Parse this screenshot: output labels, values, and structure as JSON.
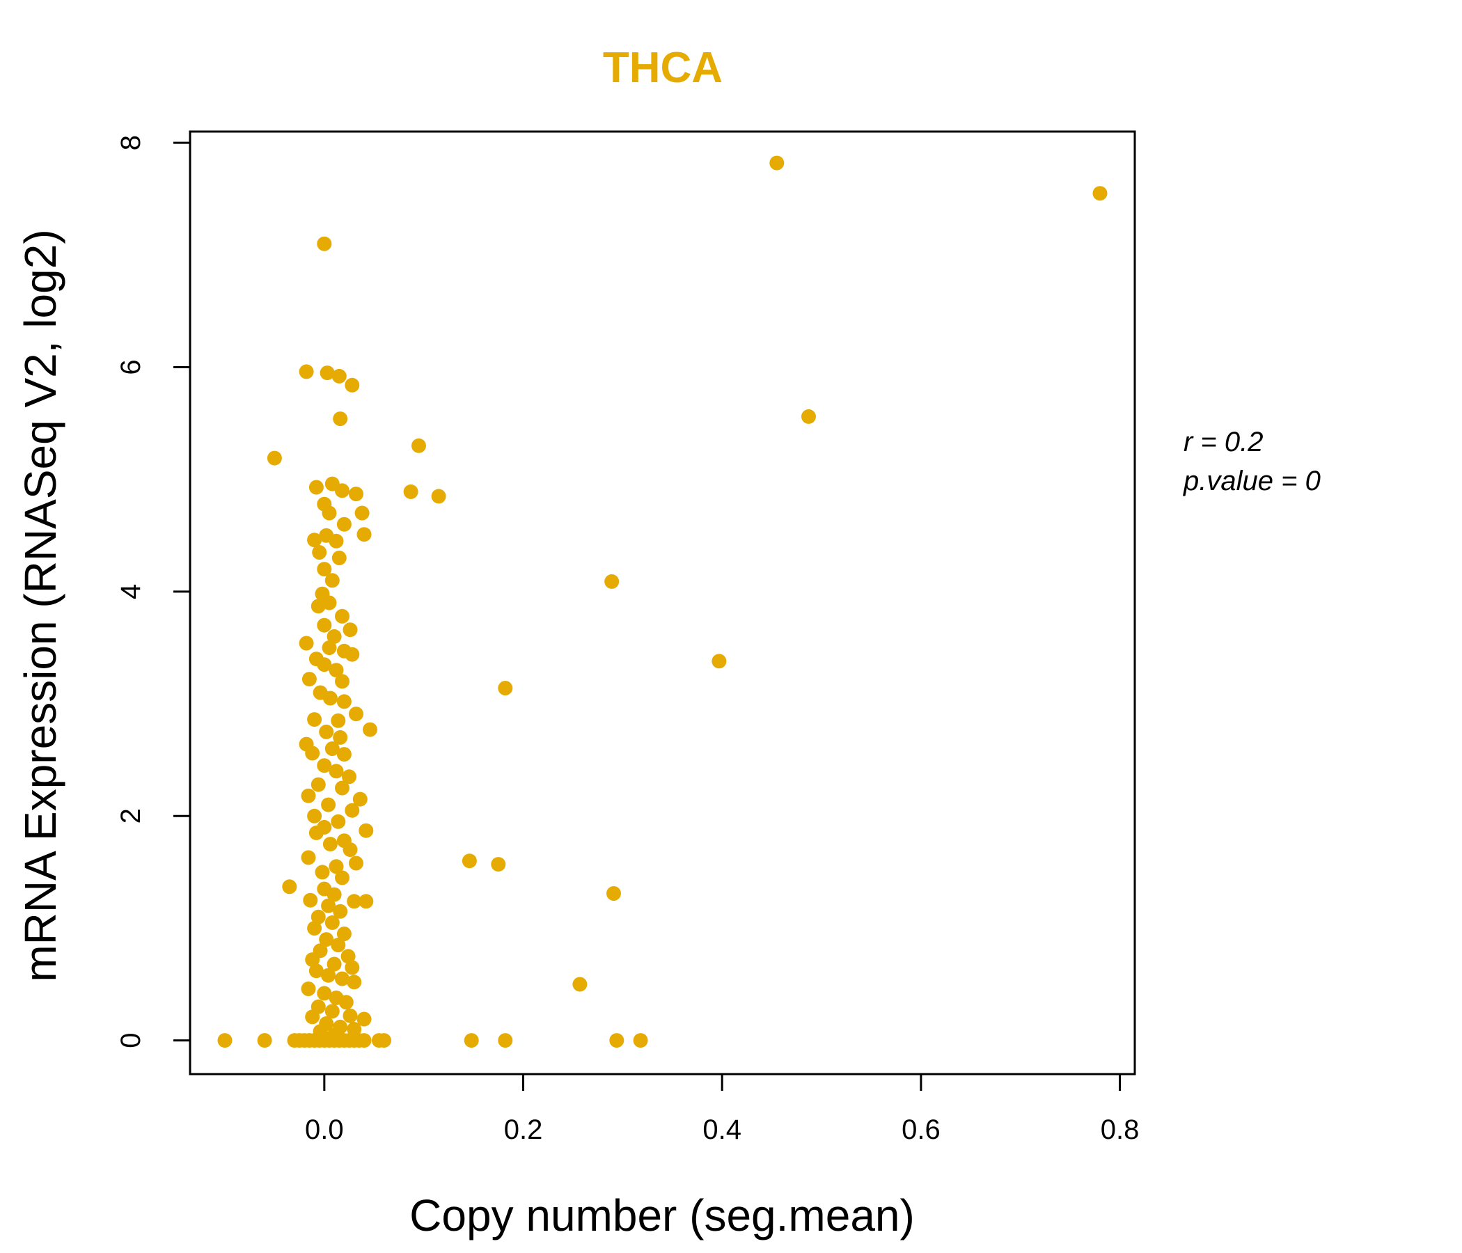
{
  "chart_data": {
    "type": "scatter",
    "title": "THCA",
    "xlabel": "Copy number (seg.mean)",
    "ylabel": "mRNA Expression (RNASeq V2, log2)",
    "xlim": [
      -0.135,
      0.815
    ],
    "ylim": [
      -0.3,
      8.1
    ],
    "x_ticks": [
      0.0,
      0.2,
      0.4,
      0.6,
      0.8
    ],
    "x_tick_labels": [
      "0.0",
      "0.2",
      "0.4",
      "0.6",
      "0.8"
    ],
    "y_ticks": [
      0,
      2,
      4,
      6,
      8
    ],
    "y_tick_labels": [
      "0",
      "2",
      "4",
      "6",
      "8"
    ],
    "grid": false,
    "point_color": "#E6AB02",
    "annotations": {
      "r_text": "r = 0.2",
      "p_text": "p.value = 0"
    },
    "points": [
      {
        "x": -0.1,
        "y": 0.0
      },
      {
        "x": -0.06,
        "y": 0.0
      },
      {
        "x": -0.03,
        "y": 0.0
      },
      {
        "x": -0.025,
        "y": 0.0
      },
      {
        "x": -0.02,
        "y": 0.0
      },
      {
        "x": -0.015,
        "y": 0.0
      },
      {
        "x": -0.01,
        "y": 0.0
      },
      {
        "x": -0.005,
        "y": 0.0
      },
      {
        "x": 0.0,
        "y": 0.0
      },
      {
        "x": 0.005,
        "y": 0.0
      },
      {
        "x": 0.01,
        "y": 0.0
      },
      {
        "x": 0.015,
        "y": 0.0
      },
      {
        "x": 0.02,
        "y": 0.0
      },
      {
        "x": 0.025,
        "y": 0.0
      },
      {
        "x": 0.03,
        "y": 0.0
      },
      {
        "x": 0.035,
        "y": 0.0
      },
      {
        "x": 0.04,
        "y": 0.0
      },
      {
        "x": 0.055,
        "y": 0.0
      },
      {
        "x": 0.06,
        "y": 0.0
      },
      {
        "x": 0.148,
        "y": 0.0
      },
      {
        "x": 0.182,
        "y": 0.0
      },
      {
        "x": 0.294,
        "y": 0.0
      },
      {
        "x": 0.318,
        "y": 0.0
      },
      {
        "x": 0.455,
        "y": 7.82
      },
      {
        "x": 0.78,
        "y": 7.55
      },
      {
        "x": 0.0,
        "y": 7.1
      },
      {
        "x": -0.018,
        "y": 5.96
      },
      {
        "x": 0.003,
        "y": 5.95
      },
      {
        "x": 0.015,
        "y": 5.92
      },
      {
        "x": 0.028,
        "y": 5.84
      },
      {
        "x": 0.016,
        "y": 5.54
      },
      {
        "x": 0.487,
        "y": 5.56
      },
      {
        "x": 0.095,
        "y": 5.3
      },
      {
        "x": -0.05,
        "y": 5.19
      },
      {
        "x": -0.008,
        "y": 4.93
      },
      {
        "x": 0.008,
        "y": 4.96
      },
      {
        "x": 0.018,
        "y": 4.9
      },
      {
        "x": 0.032,
        "y": 4.87
      },
      {
        "x": 0.087,
        "y": 4.89
      },
      {
        "x": 0.115,
        "y": 4.85
      },
      {
        "x": 0.0,
        "y": 4.78
      },
      {
        "x": 0.005,
        "y": 4.7
      },
      {
        "x": 0.038,
        "y": 4.7
      },
      {
        "x": 0.02,
        "y": 4.6
      },
      {
        "x": 0.04,
        "y": 4.51
      },
      {
        "x": -0.01,
        "y": 4.46
      },
      {
        "x": 0.002,
        "y": 4.5
      },
      {
        "x": 0.012,
        "y": 4.45
      },
      {
        "x": -0.005,
        "y": 4.35
      },
      {
        "x": 0.015,
        "y": 4.3
      },
      {
        "x": 0.0,
        "y": 4.2
      },
      {
        "x": 0.008,
        "y": 4.1
      },
      {
        "x": 0.289,
        "y": 4.09
      },
      {
        "x": -0.002,
        "y": 3.98
      },
      {
        "x": 0.005,
        "y": 3.9
      },
      {
        "x": -0.006,
        "y": 3.87
      },
      {
        "x": 0.018,
        "y": 3.78
      },
      {
        "x": 0.0,
        "y": 3.7
      },
      {
        "x": 0.026,
        "y": 3.66
      },
      {
        "x": 0.01,
        "y": 3.6
      },
      {
        "x": -0.018,
        "y": 3.54
      },
      {
        "x": 0.005,
        "y": 3.5
      },
      {
        "x": 0.02,
        "y": 3.47
      },
      {
        "x": 0.028,
        "y": 3.44
      },
      {
        "x": 0.397,
        "y": 3.38
      },
      {
        "x": -0.008,
        "y": 3.4
      },
      {
        "x": 0.0,
        "y": 3.35
      },
      {
        "x": 0.012,
        "y": 3.3
      },
      {
        "x": -0.015,
        "y": 3.22
      },
      {
        "x": 0.018,
        "y": 3.2
      },
      {
        "x": 0.182,
        "y": 3.14
      },
      {
        "x": -0.004,
        "y": 3.1
      },
      {
        "x": 0.006,
        "y": 3.05
      },
      {
        "x": 0.02,
        "y": 3.02
      },
      {
        "x": 0.032,
        "y": 2.91
      },
      {
        "x": -0.01,
        "y": 2.86
      },
      {
        "x": 0.014,
        "y": 2.85
      },
      {
        "x": 0.046,
        "y": 2.77
      },
      {
        "x": 0.002,
        "y": 2.75
      },
      {
        "x": 0.016,
        "y": 2.7
      },
      {
        "x": -0.018,
        "y": 2.64
      },
      {
        "x": 0.008,
        "y": 2.6
      },
      {
        "x": -0.012,
        "y": 2.56
      },
      {
        "x": 0.02,
        "y": 2.55
      },
      {
        "x": 0.0,
        "y": 2.45
      },
      {
        "x": 0.012,
        "y": 2.4
      },
      {
        "x": 0.025,
        "y": 2.35
      },
      {
        "x": -0.006,
        "y": 2.28
      },
      {
        "x": 0.018,
        "y": 2.25
      },
      {
        "x": -0.016,
        "y": 2.18
      },
      {
        "x": 0.036,
        "y": 2.15
      },
      {
        "x": 0.004,
        "y": 2.1
      },
      {
        "x": 0.028,
        "y": 2.05
      },
      {
        "x": -0.01,
        "y": 2.0
      },
      {
        "x": 0.014,
        "y": 1.95
      },
      {
        "x": 0.0,
        "y": 1.9
      },
      {
        "x": 0.042,
        "y": 1.87
      },
      {
        "x": -0.008,
        "y": 1.85
      },
      {
        "x": 0.02,
        "y": 1.78
      },
      {
        "x": 0.006,
        "y": 1.75
      },
      {
        "x": 0.026,
        "y": 1.7
      },
      {
        "x": -0.016,
        "y": 1.63
      },
      {
        "x": 0.146,
        "y": 1.6
      },
      {
        "x": 0.032,
        "y": 1.58
      },
      {
        "x": 0.175,
        "y": 1.57
      },
      {
        "x": 0.012,
        "y": 1.55
      },
      {
        "x": -0.002,
        "y": 1.5
      },
      {
        "x": 0.018,
        "y": 1.45
      },
      {
        "x": -0.035,
        "y": 1.37
      },
      {
        "x": 0.0,
        "y": 1.35
      },
      {
        "x": 0.291,
        "y": 1.31
      },
      {
        "x": 0.01,
        "y": 1.3
      },
      {
        "x": -0.014,
        "y": 1.25
      },
      {
        "x": 0.03,
        "y": 1.24
      },
      {
        "x": 0.042,
        "y": 1.24
      },
      {
        "x": 0.004,
        "y": 1.2
      },
      {
        "x": 0.016,
        "y": 1.15
      },
      {
        "x": -0.006,
        "y": 1.1
      },
      {
        "x": 0.008,
        "y": 1.05
      },
      {
        "x": -0.01,
        "y": 1.0
      },
      {
        "x": 0.02,
        "y": 0.95
      },
      {
        "x": 0.002,
        "y": 0.9
      },
      {
        "x": 0.014,
        "y": 0.85
      },
      {
        "x": -0.004,
        "y": 0.8
      },
      {
        "x": 0.024,
        "y": 0.75
      },
      {
        "x": -0.012,
        "y": 0.72
      },
      {
        "x": 0.01,
        "y": 0.68
      },
      {
        "x": 0.028,
        "y": 0.65
      },
      {
        "x": -0.008,
        "y": 0.62
      },
      {
        "x": 0.004,
        "y": 0.58
      },
      {
        "x": 0.018,
        "y": 0.55
      },
      {
        "x": 0.03,
        "y": 0.52
      },
      {
        "x": 0.257,
        "y": 0.5
      },
      {
        "x": -0.016,
        "y": 0.46
      },
      {
        "x": 0.0,
        "y": 0.42
      },
      {
        "x": 0.012,
        "y": 0.38
      },
      {
        "x": 0.022,
        "y": 0.34
      },
      {
        "x": -0.006,
        "y": 0.3
      },
      {
        "x": 0.008,
        "y": 0.26
      },
      {
        "x": 0.026,
        "y": 0.22
      },
      {
        "x": -0.012,
        "y": 0.21
      },
      {
        "x": 0.04,
        "y": 0.19
      },
      {
        "x": 0.002,
        "y": 0.15
      },
      {
        "x": 0.016,
        "y": 0.12
      },
      {
        "x": 0.03,
        "y": 0.1
      },
      {
        "x": -0.004,
        "y": 0.08
      },
      {
        "x": 0.01,
        "y": 0.05
      }
    ]
  }
}
